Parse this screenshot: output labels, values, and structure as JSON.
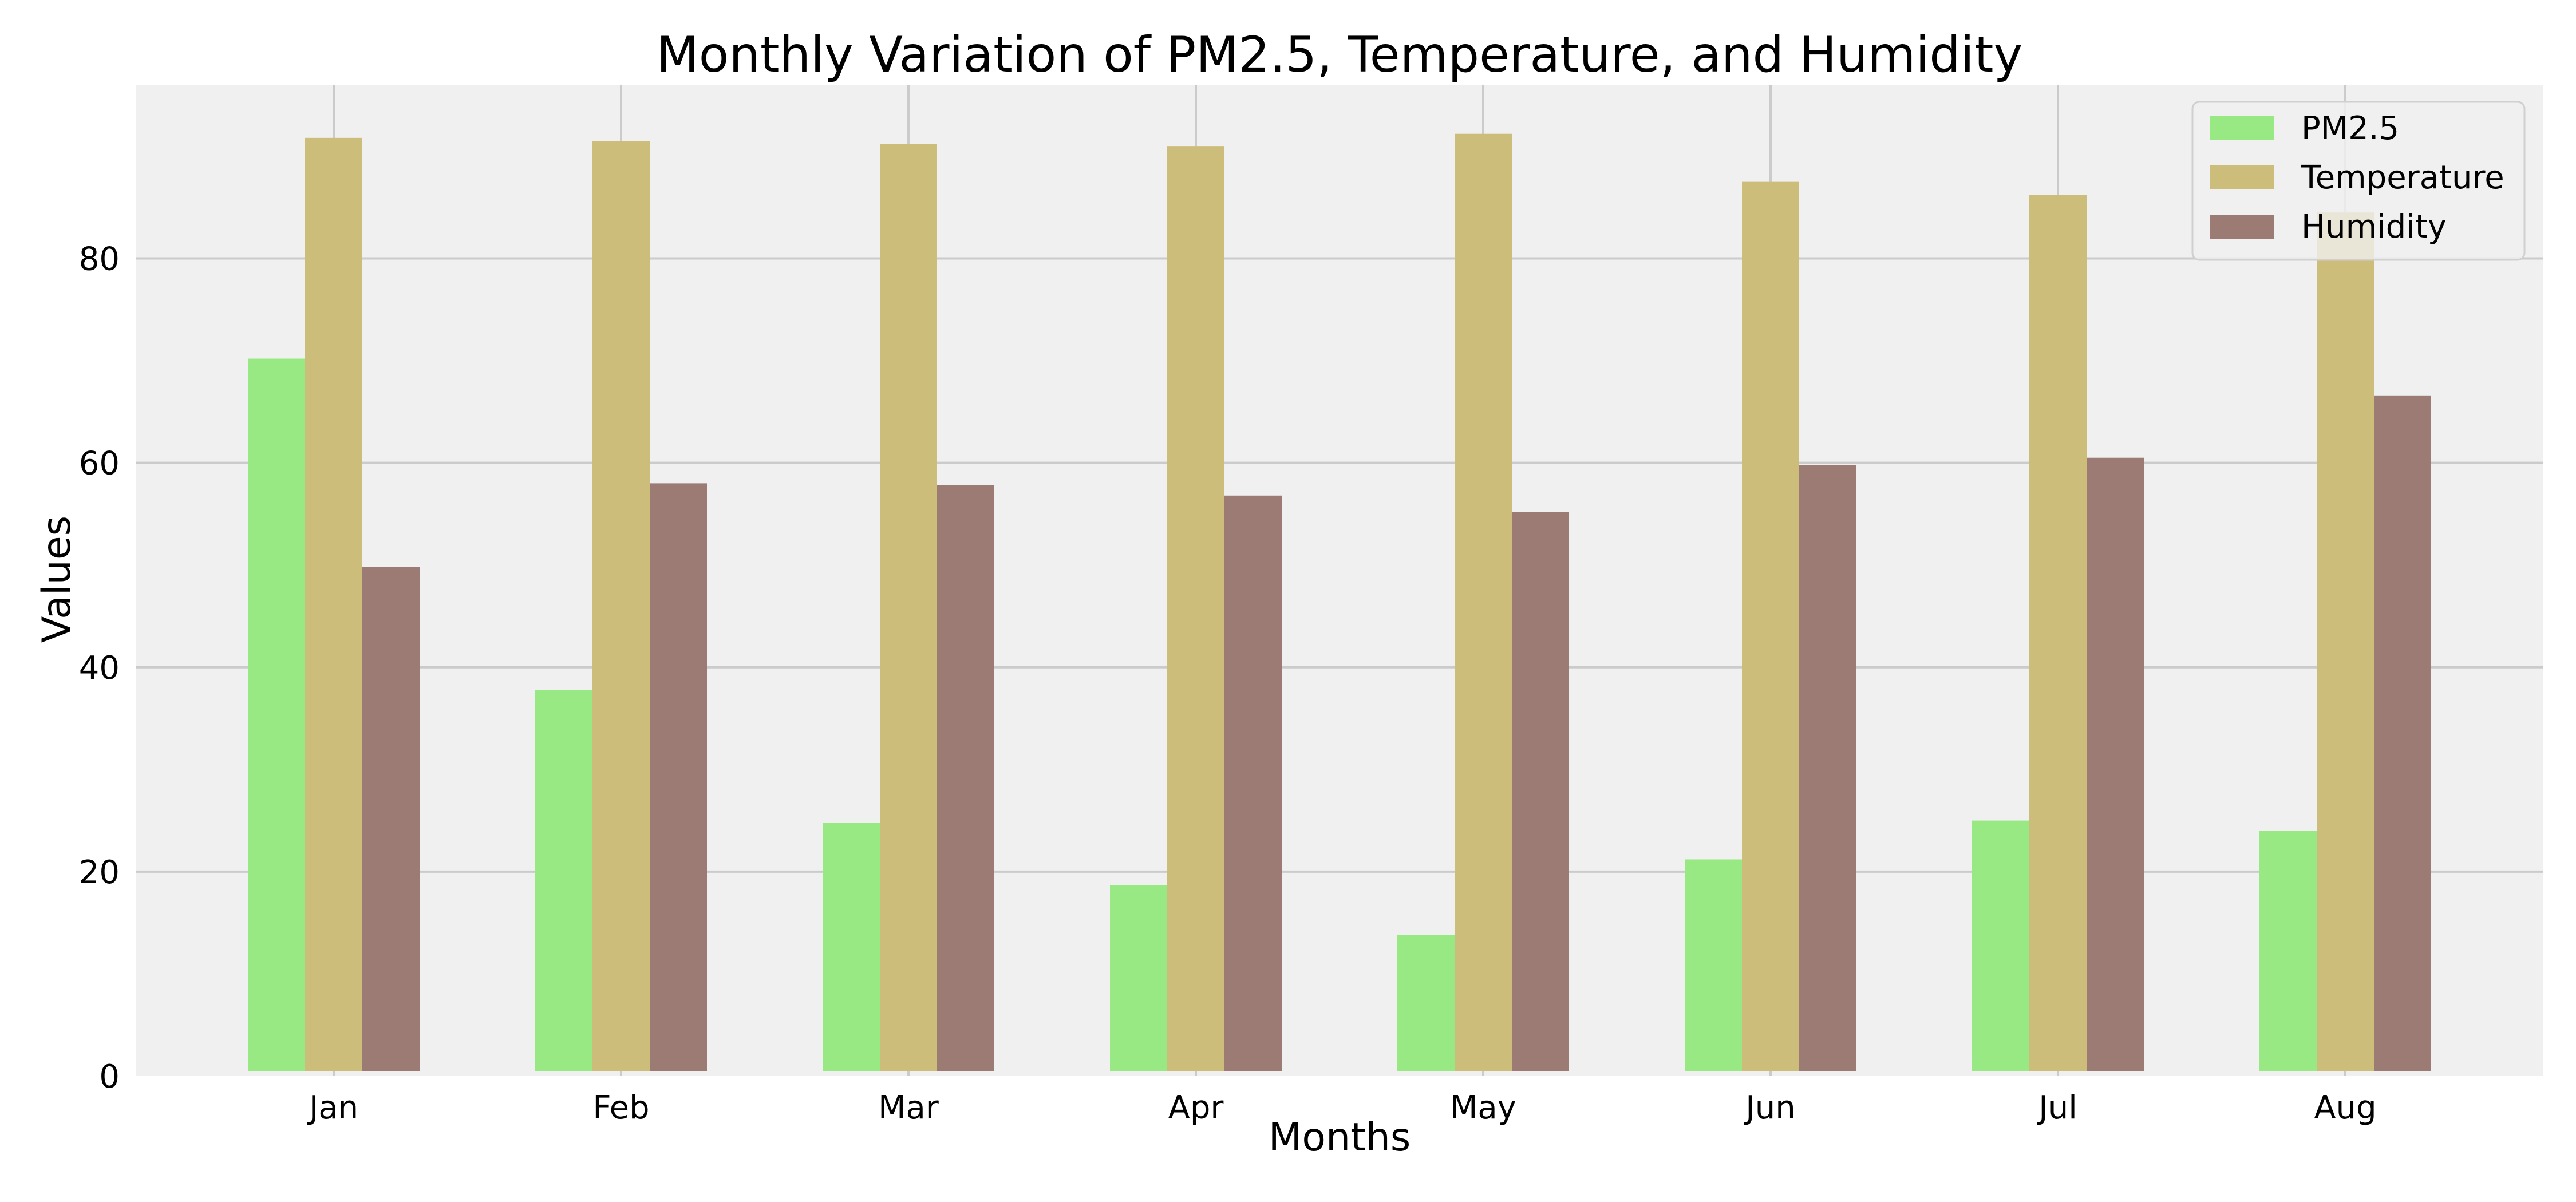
{
  "chart_data": {
    "type": "bar",
    "title": "Monthly Variation of PM2.5, Temperature, and Humidity",
    "xlabel": "Months",
    "ylabel": "Values",
    "categories": [
      "Jan",
      "Feb",
      "Mar",
      "Apr",
      "May",
      "Jun",
      "Jul",
      "Aug"
    ],
    "series": [
      {
        "name": "PM2.5",
        "color": "#98e983",
        "values": [
          70.2,
          37.8,
          24.8,
          18.7,
          13.8,
          21.2,
          25.0,
          24.0
        ]
      },
      {
        "name": "Temperature",
        "color": "#cdbd7a",
        "values": [
          91.8,
          91.5,
          91.2,
          91.0,
          92.2,
          87.5,
          86.2,
          84.5
        ]
      },
      {
        "name": "Humidity",
        "color": "#9b7b73",
        "values": [
          49.8,
          58.0,
          57.8,
          56.8,
          55.2,
          59.8,
          60.5,
          66.6
        ]
      }
    ],
    "ylim": [
      0,
      97
    ],
    "yticks": [
      0,
      20,
      40,
      60,
      80
    ],
    "grid": true,
    "legend_position": "top-right",
    "background_color": "#f0f0f0"
  }
}
